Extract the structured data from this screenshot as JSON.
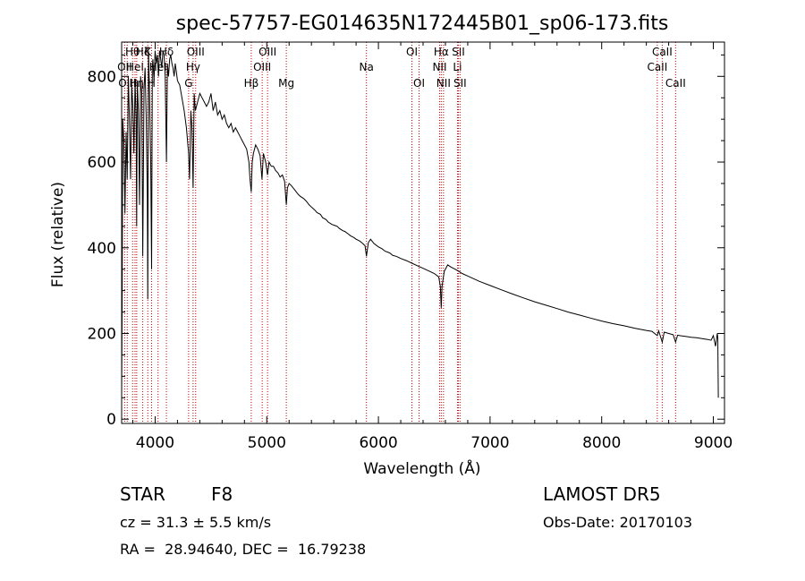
{
  "chart_data": {
    "type": "line",
    "title": "spec-57757-EG014635N172445B01_sp06-173.fits",
    "xlabel": "Wavelength (Å)",
    "ylabel": "Flux (relative)",
    "xlim": [
      3700,
      9100
    ],
    "ylim": [
      -10,
      880
    ],
    "x_ticks": [
      4000,
      5000,
      6000,
      7000,
      8000,
      9000
    ],
    "y_ticks": [
      0,
      200,
      400,
      600,
      800
    ],
    "grid": false,
    "series": [
      {
        "x": [
          3700,
          3705,
          3710,
          3720,
          3730,
          3740,
          3750,
          3760,
          3770,
          3780,
          3790,
          3800,
          3810,
          3820,
          3830,
          3835,
          3840,
          3850,
          3860,
          3870,
          3880,
          3889,
          3900,
          3910,
          3920,
          3930,
          3934,
          3940,
          3950,
          3960,
          3968,
          3975,
          3980,
          3990,
          4000,
          4010,
          4020,
          4030,
          4040,
          4050,
          4060,
          4070,
          4080,
          4090,
          4101,
          4110,
          4120,
          4130,
          4140,
          4150,
          4160,
          4170,
          4180,
          4190,
          4200,
          4220,
          4240,
          4260,
          4280,
          4300,
          4308,
          4320,
          4330,
          4340,
          4350,
          4360,
          4380,
          4400,
          4420,
          4440,
          4460,
          4480,
          4500,
          4520,
          4540,
          4560,
          4580,
          4600,
          4620,
          4640,
          4660,
          4680,
          4700,
          4720,
          4740,
          4760,
          4780,
          4800,
          4820,
          4840,
          4850,
          4861,
          4870,
          4880,
          4900,
          4920,
          4940,
          4957,
          4970,
          4990,
          5007,
          5020,
          5040,
          5060,
          5080,
          5100,
          5120,
          5140,
          5160,
          5175,
          5185,
          5200,
          5220,
          5250,
          5280,
          5300,
          5330,
          5350,
          5380,
          5400,
          5430,
          5450,
          5480,
          5500,
          5530,
          5550,
          5580,
          5600,
          5630,
          5650,
          5680,
          5700,
          5730,
          5750,
          5780,
          5800,
          5830,
          5850,
          5880,
          5893,
          5910,
          5930,
          5960,
          6000,
          6030,
          6060,
          6100,
          6130,
          6160,
          6200,
          6250,
          6300,
          6350,
          6400,
          6450,
          6500,
          6540,
          6555,
          6563,
          6570,
          6590,
          6620,
          6650,
          6700,
          6750,
          6800,
          6850,
          6900,
          7000,
          7100,
          7200,
          7300,
          7400,
          7500,
          7600,
          7700,
          7800,
          7900,
          8000,
          8100,
          8200,
          8300,
          8400,
          8450,
          8498,
          8510,
          8542,
          8560,
          8600,
          8640,
          8662,
          8680,
          8700,
          8750,
          8800,
          8850,
          8900,
          8950,
          8980,
          9000,
          9020,
          9035,
          9040,
          9045
        ],
        "y": [
          60,
          300,
          700,
          650,
          480,
          670,
          560,
          800,
          700,
          560,
          780,
          730,
          620,
          790,
          700,
          450,
          790,
          720,
          500,
          800,
          760,
          380,
          770,
          820,
          700,
          520,
          280,
          860,
          760,
          600,
          350,
          820,
          840,
          790,
          860,
          830,
          850,
          800,
          860,
          840,
          820,
          860,
          850,
          800,
          600,
          830,
          800,
          840,
          850,
          830,
          820,
          800,
          830,
          810,
          790,
          780,
          750,
          720,
          680,
          620,
          560,
          720,
          680,
          540,
          760,
          720,
          740,
          760,
          750,
          740,
          730,
          740,
          760,
          720,
          740,
          710,
          720,
          700,
          710,
          690,
          680,
          690,
          670,
          680,
          670,
          660,
          650,
          640,
          630,
          600,
          560,
          530,
          600,
          620,
          640,
          630,
          615,
          560,
          620,
          600,
          570,
          600,
          590,
          590,
          580,
          575,
          565,
          570,
          555,
          500,
          540,
          550,
          545,
          535,
          525,
          520,
          515,
          510,
          500,
          495,
          488,
          482,
          478,
          470,
          466,
          460,
          455,
          453,
          450,
          445,
          440,
          438,
          432,
          428,
          424,
          420,
          416,
          412,
          405,
          380,
          412,
          420,
          410,
          402,
          398,
          392,
          388,
          382,
          380,
          375,
          370,
          364,
          358,
          352,
          346,
          340,
          332,
          310,
          260,
          310,
          345,
          360,
          355,
          348,
          340,
          334,
          328,
          322,
          312,
          302,
          292,
          283,
          274,
          266,
          258,
          250,
          243,
          236,
          229,
          223,
          218,
          212,
          207,
          205,
          195,
          206,
          180,
          203,
          200,
          197,
          180,
          196,
          195,
          193,
          191,
          190,
          188,
          186,
          184,
          195,
          170,
          200,
          190,
          50
        ]
      }
    ],
    "line_markers": [
      {
        "wavelength": 3727,
        "label": "OII",
        "row": 1
      },
      {
        "wavelength": 3750,
        "label": "OIII",
        "row": 2
      },
      {
        "wavelength": 3798,
        "label": "Hθ",
        "row": 0
      },
      {
        "wavelength": 3820,
        "label": "HeI",
        "row": 1
      },
      {
        "wavelength": 3835,
        "label": "Hη",
        "row": 2
      },
      {
        "wavelength": 3889,
        "label": "Hζ",
        "row": 0
      },
      {
        "wavelength": 3934,
        "label": "K",
        "row": 0
      },
      {
        "wavelength": 3968,
        "label": "H",
        "row": 2
      },
      {
        "wavelength": 4026,
        "label": "HeI",
        "row": 1
      },
      {
        "wavelength": 4101,
        "label": "Hδ",
        "row": 0
      },
      {
        "wavelength": 4300,
        "label": "G",
        "row": 2
      },
      {
        "wavelength": 4340,
        "label": "Hγ",
        "row": 1
      },
      {
        "wavelength": 4363,
        "label": "OIII",
        "row": 0
      },
      {
        "wavelength": 4861,
        "label": "Hβ",
        "row": 2
      },
      {
        "wavelength": 4959,
        "label": "OIII",
        "row": 1
      },
      {
        "wavelength": 5007,
        "label": "OIII",
        "row": 0
      },
      {
        "wavelength": 5175,
        "label": "Mg",
        "row": 2
      },
      {
        "wavelength": 5893,
        "label": "Na",
        "row": 1
      },
      {
        "wavelength": 6300,
        "label": "OI",
        "row": 0
      },
      {
        "wavelength": 6364,
        "label": "OI",
        "row": 2
      },
      {
        "wavelength": 6548,
        "label": "NII",
        "row": 1
      },
      {
        "wavelength": 6563,
        "label": "Hα",
        "row": 0
      },
      {
        "wavelength": 6583,
        "label": "NII",
        "row": 2
      },
      {
        "wavelength": 6708,
        "label": "Li",
        "row": 1
      },
      {
        "wavelength": 6716,
        "label": "SII",
        "row": 0
      },
      {
        "wavelength": 6731,
        "label": "SII",
        "row": 2
      },
      {
        "wavelength": 8498,
        "label": "CaII",
        "row": 1
      },
      {
        "wavelength": 8542,
        "label": "CaII",
        "row": 0
      },
      {
        "wavelength": 8662,
        "label": "CaII",
        "row": 2
      }
    ]
  },
  "footer": {
    "object_type": "STAR",
    "subclass": "F8",
    "survey": "LAMOST DR5",
    "cz": "cz = 31.3 ± 5.5 km/s",
    "obs_date": "Obs-Date: 20170103",
    "coords": "RA =  28.94640, DEC =  16.79238"
  },
  "colors": {
    "spectrum": "#000000",
    "marker": "#c00000",
    "axes": "#000000",
    "background": "#ffffff"
  }
}
